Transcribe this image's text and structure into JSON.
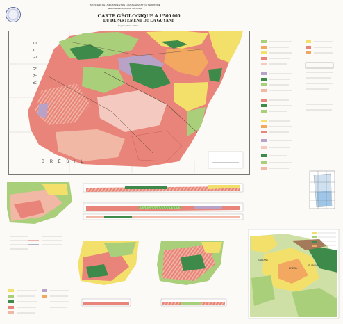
{
  "header": {
    "ministry": "MINISTERE DE L'INDUSTRIE ET DE L'AMENAGEMENT DU TERRITOIRE",
    "service": "SERVICE GEOLOGIQUE NATIONAL"
  },
  "map": {
    "title": "CARTE GÉOLOGIQUE A 1/500 000",
    "subtitle": "DU DÉPARTEMENT DE LA GUYANE",
    "edition": "Guyane, 2eme édition",
    "labels": {
      "suriname": "S U R I N A M",
      "bresil": "B R É S I L"
    }
  },
  "inset": {
    "labels": [
      "GUYANE",
      "SURINAM",
      "BRESIL"
    ]
  },
  "colors": {
    "background": "#fbfaf6",
    "sea": "#ffffff",
    "granite_red": "#e8847a",
    "granite_light": "#f2b8a6",
    "pink": "#f4c9c0",
    "green_dark": "#3e8a4a",
    "green_light": "#a9cf7a",
    "yellow": "#f3e06a",
    "orange": "#f2a860",
    "purple": "#b9a2c8",
    "brown": "#a57a5a"
  }
}
